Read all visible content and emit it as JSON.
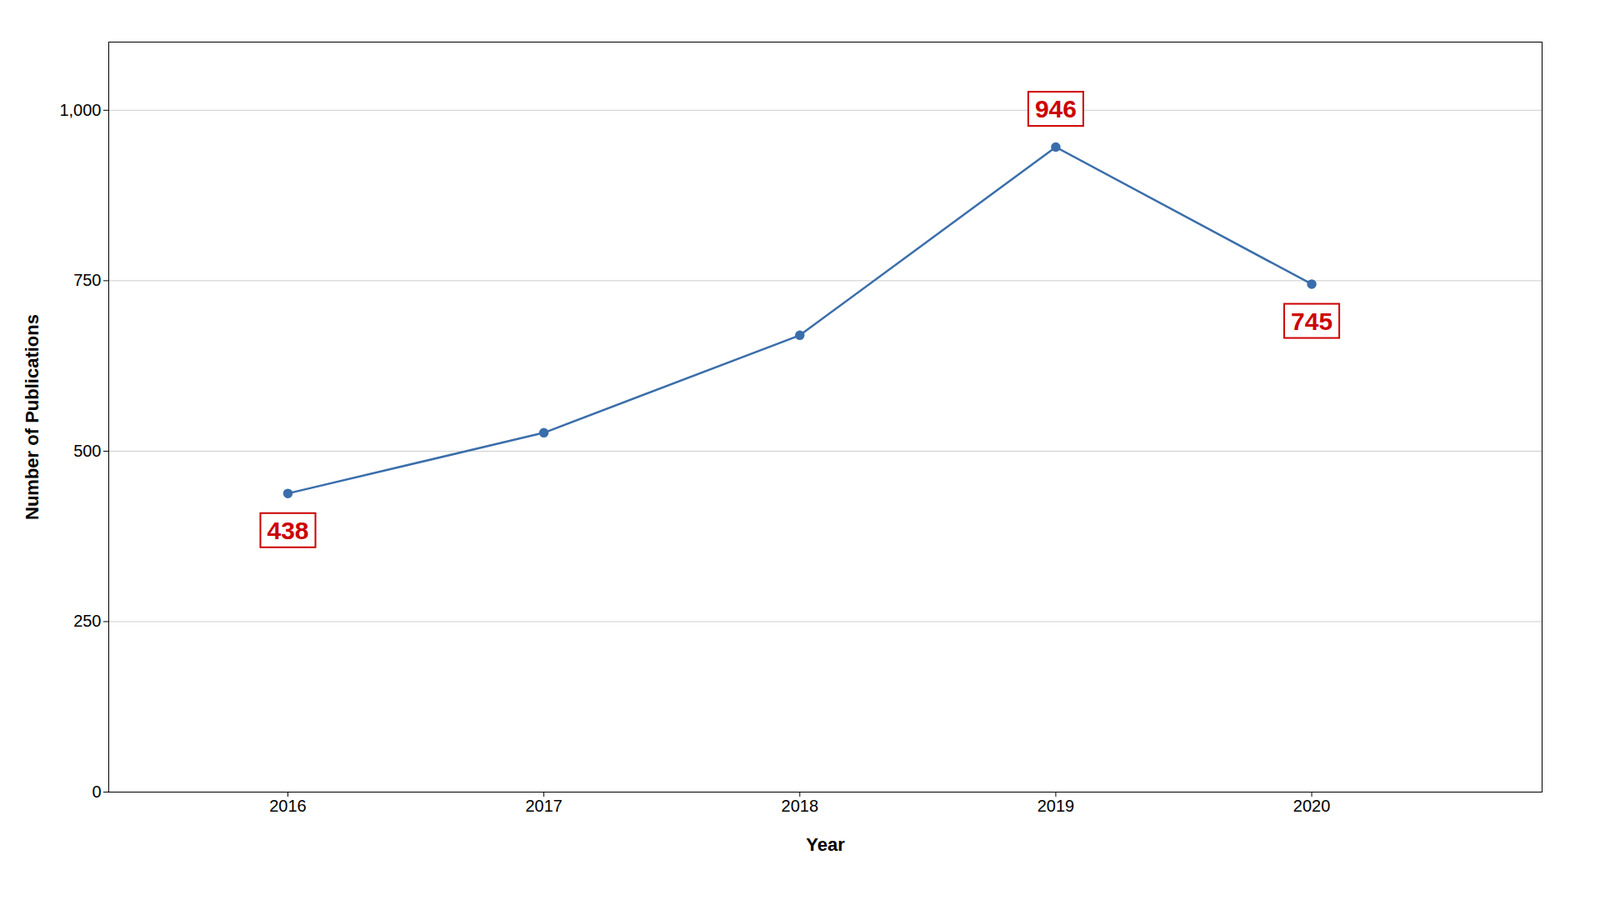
{
  "chart_data": {
    "type": "line",
    "xlabel": "Year",
    "ylabel": "Number of Publications",
    "x": [
      2016,
      2017,
      2018,
      2019,
      2020
    ],
    "values": [
      438,
      527,
      670,
      946,
      745
    ],
    "color": "#3a6eaa",
    "marker": "circle",
    "xlim": [
      2015.3,
      2020.9
    ],
    "xticks": [
      2016,
      2017,
      2018,
      2019,
      2020
    ],
    "ylim": [
      0,
      1100
    ],
    "yticks": [
      0,
      250,
      500,
      750,
      {
        "value": 1000,
        "label": "1,000"
      }
    ],
    "grid": true,
    "annotations": [
      {
        "text": "438",
        "x": 2016,
        "y": 438,
        "color": "#cc0000"
      },
      {
        "text": "946",
        "x": 2019,
        "y": 946,
        "color": "#cc0000"
      },
      {
        "text": "745",
        "x": 2020,
        "y": 745,
        "color": "#cc0000"
      }
    ]
  }
}
